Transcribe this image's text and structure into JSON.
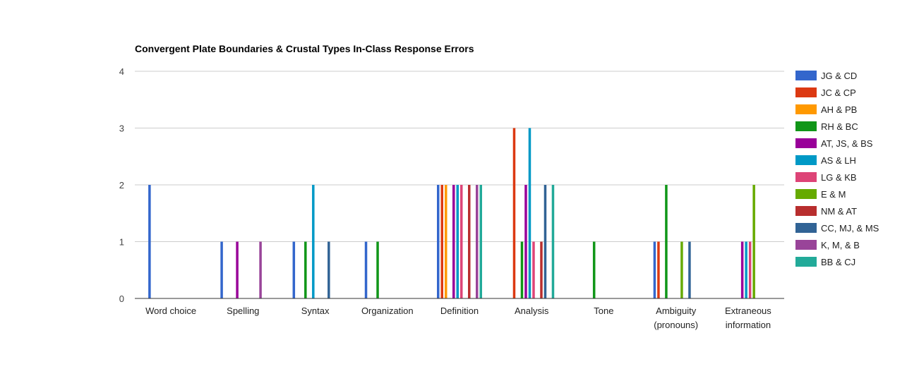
{
  "chart_data": {
    "type": "bar",
    "title": "Convergent Plate Boundaries & Crustal Types In-Class Response Errors",
    "xlabel": "",
    "ylabel": "",
    "ylim": [
      0,
      4
    ],
    "yticks": [
      "0",
      "1",
      "2",
      "3",
      "4"
    ],
    "grid": true,
    "legend_position": "right",
    "categories": [
      [
        "Word choice"
      ],
      [
        "Spelling"
      ],
      [
        "Syntax"
      ],
      [
        "Organization"
      ],
      [
        "Definition"
      ],
      [
        "Analysis"
      ],
      [
        "Tone"
      ],
      [
        "Ambiguity",
        "(pronouns)"
      ],
      [
        "Extraneous",
        "information"
      ]
    ],
    "series": [
      {
        "name": "JG & CD",
        "color": "#3366cc",
        "values": [
          2,
          1,
          1,
          1,
          2,
          0,
          0,
          1,
          0
        ]
      },
      {
        "name": "JC & CP",
        "color": "#dc3912",
        "values": [
          0,
          0,
          0,
          0,
          2,
          3,
          0,
          1,
          0
        ]
      },
      {
        "name": "AH & PB",
        "color": "#ff9900",
        "values": [
          0,
          0,
          0,
          0,
          2,
          0,
          0,
          0,
          0
        ]
      },
      {
        "name": "RH & BC",
        "color": "#109618",
        "values": [
          0,
          0,
          1,
          1,
          0,
          1,
          1,
          2,
          0
        ]
      },
      {
        "name": "AT, JS, & BS",
        "color": "#990099",
        "values": [
          0,
          1,
          0,
          0,
          2,
          2,
          0,
          0,
          1
        ]
      },
      {
        "name": "AS & LH",
        "color": "#0099c6",
        "values": [
          0,
          0,
          2,
          0,
          2,
          3,
          0,
          0,
          1
        ]
      },
      {
        "name": "LG & KB",
        "color": "#dd4477",
        "values": [
          0,
          0,
          0,
          0,
          2,
          1,
          0,
          0,
          1
        ]
      },
      {
        "name": "E & M",
        "color": "#66aa00",
        "values": [
          0,
          0,
          0,
          0,
          0,
          0,
          0,
          1,
          2
        ]
      },
      {
        "name": "NM & AT",
        "color": "#b82e2e",
        "values": [
          0,
          0,
          0,
          0,
          2,
          1,
          0,
          0,
          0
        ]
      },
      {
        "name": "CC, MJ, & MS",
        "color": "#316395",
        "values": [
          0,
          0,
          1,
          0,
          0,
          2,
          0,
          1,
          0
        ]
      },
      {
        "name": "K, M, & B",
        "color": "#994499",
        "values": [
          0,
          1,
          0,
          0,
          2,
          0,
          0,
          0,
          0
        ]
      },
      {
        "name": "BB & CJ",
        "color": "#22aa99",
        "values": [
          0,
          0,
          0,
          0,
          2,
          2,
          0,
          0,
          0
        ]
      }
    ]
  }
}
